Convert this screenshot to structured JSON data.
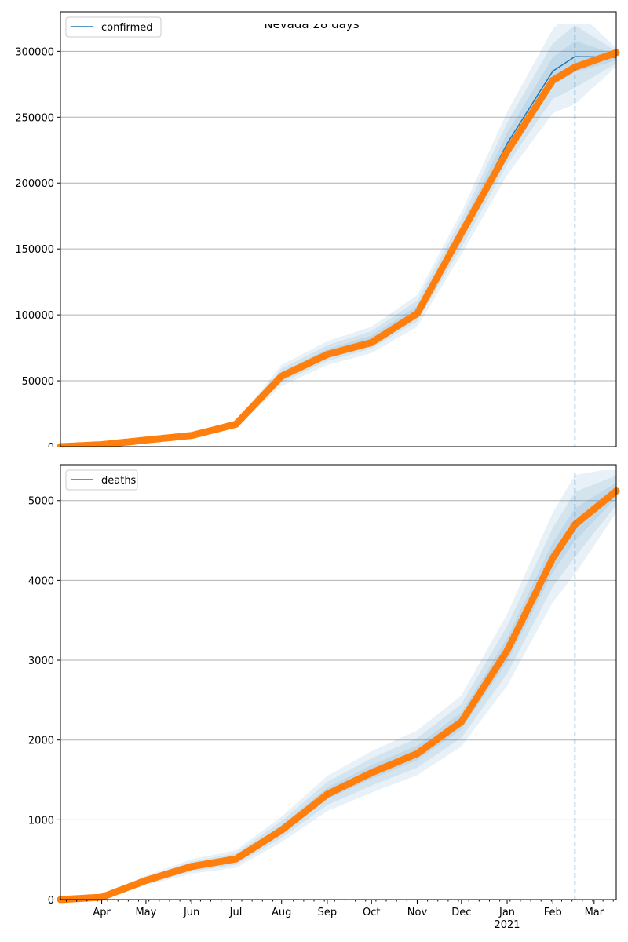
{
  "chart_data": [
    {
      "type": "line",
      "title": "Nevada 28 days",
      "legend": [
        "confirmed"
      ],
      "legend_position": "top-left",
      "ylim": [
        0,
        330000
      ],
      "yticks": [
        0,
        50000,
        100000,
        150000,
        200000,
        250000,
        300000
      ],
      "ytick_labels": [
        "0",
        "50000",
        "100000",
        "150000",
        "200000",
        "250000",
        "300000"
      ],
      "xlim": [
        "2020-03-04",
        "2021-03-16"
      ],
      "forecast_start": "2021-02-16",
      "grid": "y",
      "dates": [
        "2020-03-04",
        "2020-04-01",
        "2020-05-01",
        "2020-06-01",
        "2020-07-01",
        "2020-08-01",
        "2020-09-01",
        "2020-10-01",
        "2020-11-01",
        "2020-12-01",
        "2021-01-01",
        "2021-02-01",
        "2021-02-16",
        "2021-03-16"
      ],
      "observed": [
        0,
        1500,
        5000,
        8500,
        17000,
        53500,
        70000,
        79000,
        101000,
        162000,
        224000,
        278000,
        288000,
        299000
      ],
      "model": [
        0,
        1500,
        5000,
        8500,
        17000,
        54000,
        71000,
        81000,
        103000,
        162000,
        230000,
        285000,
        296000,
        295500
      ],
      "uncertainty": [
        0,
        0,
        0,
        500,
        2000,
        8000,
        9000,
        10000,
        12000,
        16000,
        24000,
        32000,
        36000,
        7000
      ],
      "colors": {
        "model": "#1f77b4",
        "observed": "#ff7f0e"
      }
    },
    {
      "type": "line",
      "legend": [
        "deaths"
      ],
      "legend_position": "top-left",
      "ylim": [
        0,
        5450
      ],
      "yticks": [
        0,
        1000,
        2000,
        3000,
        4000,
        5000
      ],
      "ytick_labels": [
        "0",
        "1000",
        "2000",
        "3000",
        "4000",
        "5000"
      ],
      "xlim": [
        "2020-03-04",
        "2021-03-16"
      ],
      "xtick_labels": [
        "Apr",
        "May",
        "Jun",
        "Jul",
        "Aug",
        "Sep",
        "Oct",
        "Nov",
        "Dec",
        "Jan",
        "Feb",
        "Mar"
      ],
      "xtick_dates": [
        "2020-04-01",
        "2020-05-01",
        "2020-06-01",
        "2020-07-01",
        "2020-08-01",
        "2020-09-01",
        "2020-10-01",
        "2020-11-01",
        "2020-12-01",
        "2021-01-01",
        "2021-02-01",
        "2021-03-01"
      ],
      "year_label": "2021",
      "forecast_start": "2021-02-16",
      "grid": "y",
      "dates": [
        "2020-03-04",
        "2020-04-01",
        "2020-05-01",
        "2020-06-01",
        "2020-07-01",
        "2020-08-01",
        "2020-09-01",
        "2020-10-01",
        "2020-11-01",
        "2020-12-01",
        "2021-01-01",
        "2021-02-01",
        "2021-02-16",
        "2021-03-16"
      ],
      "observed": [
        0,
        30,
        240,
        415,
        510,
        870,
        1320,
        1590,
        1830,
        2230,
        3120,
        4280,
        4700,
        5120
      ],
      "model": [
        0,
        30,
        240,
        415,
        510,
        880,
        1330,
        1600,
        1840,
        2240,
        3130,
        4290,
        4700,
        5130
      ],
      "uncertainty": [
        0,
        20,
        60,
        90,
        110,
        160,
        220,
        260,
        280,
        320,
        450,
        560,
        620,
        280
      ],
      "colors": {
        "model": "#1f77b4",
        "observed": "#ff7f0e"
      }
    }
  ]
}
